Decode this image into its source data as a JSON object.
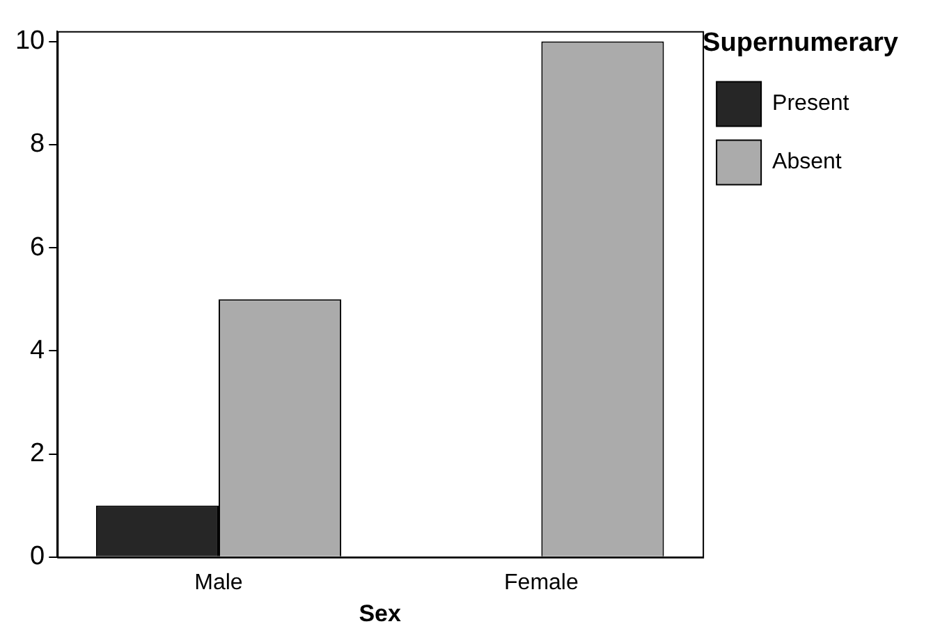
{
  "chart_data": {
    "type": "bar",
    "xlabel": "Sex",
    "legend_title": "Supernumerary",
    "categories": [
      "Male",
      "Female"
    ],
    "series": [
      {
        "name": "Present",
        "color": "#262626",
        "values": [
          1,
          0
        ]
      },
      {
        "name": "Absent",
        "color": "#ababab",
        "values": [
          5,
          10
        ]
      }
    ],
    "ylim": [
      0,
      10.2
    ],
    "yticks": [
      0,
      2,
      4,
      6,
      8,
      10
    ],
    "grid": false,
    "legend": "top right"
  }
}
